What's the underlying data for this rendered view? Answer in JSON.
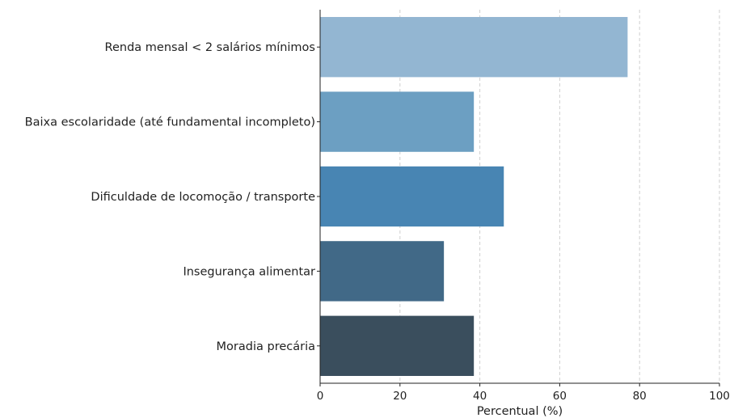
{
  "chart_data": {
    "type": "bar",
    "orientation": "horizontal",
    "title": "",
    "xlabel": "Percentual (%)",
    "ylabel": "",
    "xlim": [
      0,
      100
    ],
    "xticks": [
      0,
      20,
      40,
      60,
      80,
      100
    ],
    "grid": "vertical dashed",
    "categories": [
      "Renda mensal < 2 salários mínimos",
      "Baixa escolaridade (até fundamental incompleto)",
      "Dificuldade de locomoção / transporte",
      "Insegurança alimentar",
      "Moradia precária"
    ],
    "values": [
      77,
      38.5,
      46,
      31,
      38.5
    ],
    "colors": [
      "#93b6d2",
      "#6c9fc2",
      "#4885b3",
      "#416987",
      "#3a4e5d"
    ]
  }
}
